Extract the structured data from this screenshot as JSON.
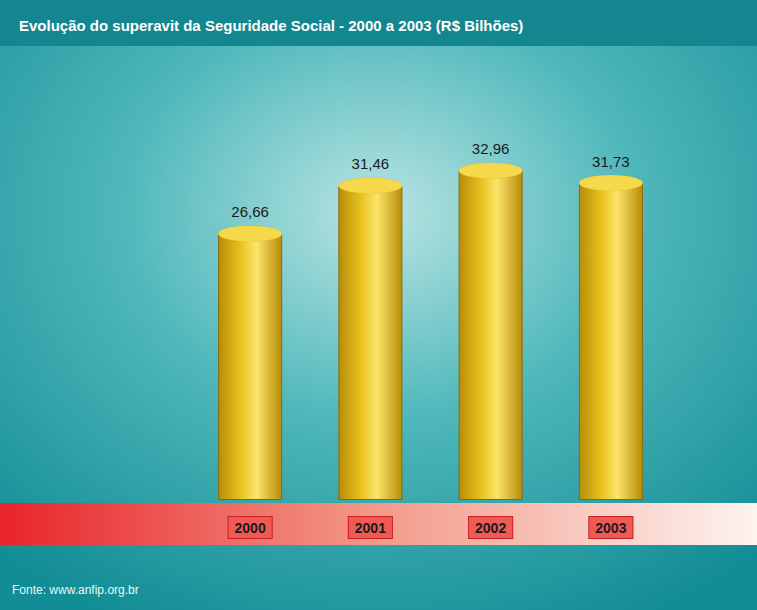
{
  "chart_data": {
    "type": "bar",
    "title": "Evolução do superavit da Seguridade Social - 2000 a 2003 (R$ Bilhões)",
    "source": "Fonte: www.anfip.org.br",
    "categories": [
      "2000",
      "2001",
      "2002",
      "2003"
    ],
    "values": [
      26.66,
      31.46,
      32.96,
      31.73
    ],
    "value_labels": [
      "26,66",
      "31,46",
      "32,96",
      "31,73"
    ],
    "color": "#e8c21e",
    "ylim": [
      0,
      36
    ],
    "data_labels": true,
    "tick_labels": "x",
    "grid": false
  }
}
